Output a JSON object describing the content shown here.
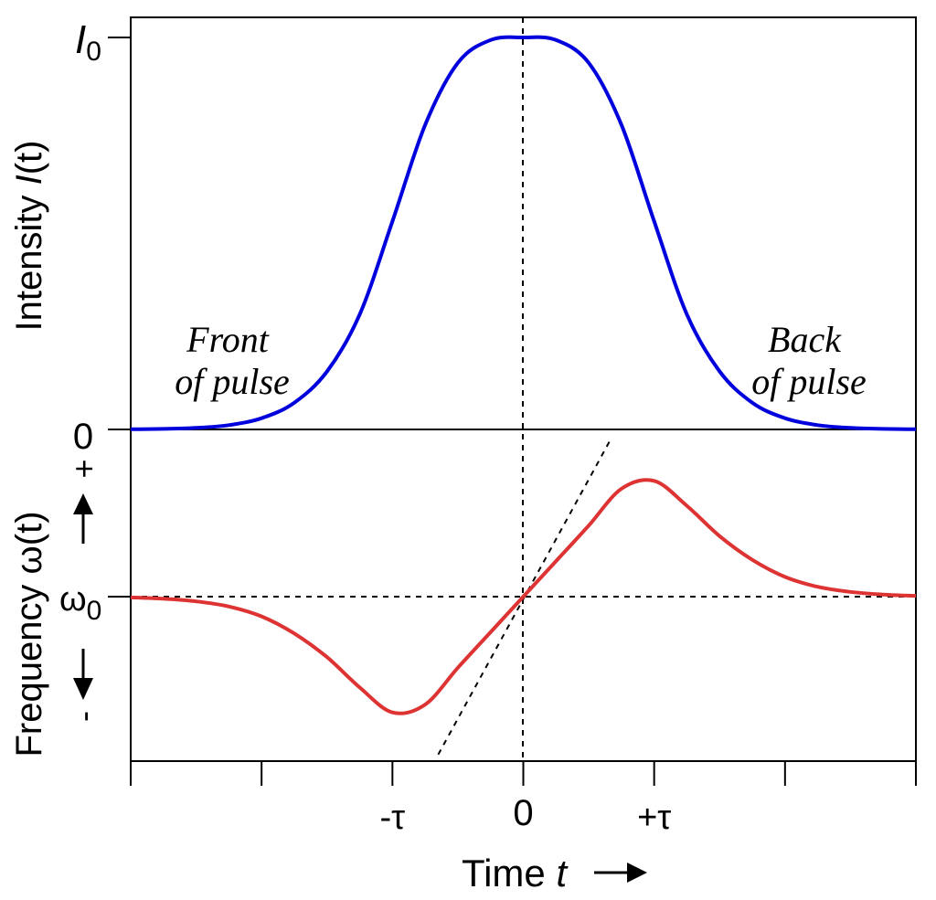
{
  "chart_data": {
    "type": "line",
    "title": "",
    "colors": {
      "intensity": "#0000dd",
      "frequency": "#dd3333",
      "axes": "#000000"
    },
    "x": [
      -3,
      -2.75,
      -2.5,
      -2.25,
      -2,
      -1.75,
      -1.5,
      -1.25,
      -1,
      -0.75,
      -0.5,
      -0.25,
      0,
      0.25,
      0.5,
      0.75,
      1,
      1.25,
      1.5,
      1.75,
      2,
      2.25,
      2.5,
      2.75,
      3
    ],
    "x_tick_positions": [
      -3,
      -2,
      -1,
      0,
      1,
      2,
      3
    ],
    "x_tick_labels": {
      "-1": "-τ",
      "0": "0",
      "1": "+τ"
    },
    "xlabel": {
      "text": "Time ",
      "variable": "t"
    },
    "xlim": [
      -3,
      3
    ],
    "panels": {
      "intensity": {
        "ylabel": {
          "text": "Intensity ",
          "variable": "I",
          "suffix": "(t)"
        },
        "y_ticks": {
          "top_label": "I",
          "top_sub": "0",
          "bottom_label": "0"
        },
        "ylim": [
          0,
          1.05
        ],
        "series": [
          {
            "values": [
              0.0004,
              0.0013,
              0.0039,
              0.011,
              0.0286,
              0.0682,
              0.148,
              0.2932,
              0.5308,
              0.777,
              0.9352,
              0.9934,
              1.0,
              0.9934,
              0.9352,
              0.777,
              0.5308,
              0.2932,
              0.148,
              0.0682,
              0.0286,
              0.011,
              0.0039,
              0.0013,
              0.0004
            ]
          }
        ],
        "annotations": [
          {
            "line1": "Front",
            "line2": "of pulse"
          },
          {
            "line1": "Back",
            "line2": "of pulse"
          }
        ]
      },
      "frequency": {
        "ylabel": {
          "text": "Frequency ω",
          "suffix": "(t)"
        },
        "y_ticks": {
          "plus": "+",
          "minus": "-",
          "center_label": "ω",
          "center_sub": "0"
        },
        "ylim": [
          -1.3,
          1.0
        ],
        "series": [
          {
            "values": [
              -0.006,
              -0.016,
              -0.036,
              -0.075,
              -0.15,
              -0.28,
              -0.46,
              -0.69,
              -0.88,
              -0.82,
              -0.54,
              -0.27,
              0.0,
              0.27,
              0.54,
              0.82,
              0.88,
              0.69,
              0.46,
              0.28,
              0.15,
              0.075,
              0.036,
              0.016,
              0.006
            ]
          }
        ],
        "tangent": {
          "x": [
            -0.65,
            0.67
          ],
          "y": [
            -1.2,
            1.2
          ]
        }
      }
    }
  }
}
